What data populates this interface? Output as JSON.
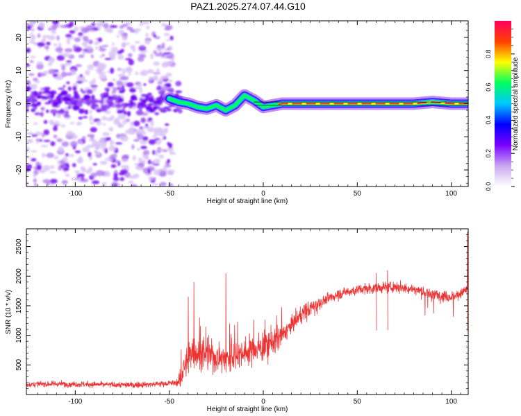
{
  "title": "PAZ1.2025.274.07.44.G10",
  "chart_data": [
    {
      "type": "heatmap",
      "title": "PAZ1.2025.274.07.44.G10",
      "xlabel": "Height of straight line (km)",
      "ylabel": "Frequency (Hz)",
      "xlim": [
        -126,
        109
      ],
      "ylim": [
        -25,
        25
      ],
      "xticks": [
        -100,
        -50,
        0,
        50,
        100
      ],
      "xtick_labels": [
        "-100",
        "-50",
        "0",
        "50",
        "100"
      ],
      "yticks": [
        -20,
        -10,
        0,
        10,
        20
      ],
      "ytick_labels": [
        "-20",
        "-10",
        "0",
        "10",
        "20"
      ],
      "colorbar": {
        "label": "Normalized spectral amplitude",
        "ticks": [
          0.0,
          0.2,
          0.4,
          0.6,
          0.8
        ],
        "tick_labels": [
          "0.0",
          "0.2",
          "0.4",
          "0.6",
          "0.8"
        ],
        "range": [
          0,
          1
        ],
        "colormap": [
          "#ffffff",
          "#c9a8f0",
          "#7a00ff",
          "#0000ff",
          "#00c8ff",
          "#00ff60",
          "#ffff00",
          "#ff4000",
          "#ff0060"
        ]
      },
      "ridge": {
        "description_x_km": [
          -50,
          -45,
          -40,
          -35,
          -30,
          -25,
          -20,
          -15,
          -10,
          -5,
          0,
          5,
          10,
          20,
          40,
          60,
          80,
          90,
          100,
          109
        ],
        "frequency_hz": [
          1.5,
          0.5,
          0.0,
          -1.0,
          -1.5,
          -0.5,
          -2.0,
          -0.5,
          2.5,
          1.0,
          -1.0,
          -0.5,
          0.0,
          0.0,
          0.0,
          0.0,
          0.0,
          0.5,
          0.0,
          0.0
        ]
      },
      "noise_region_x_km": [
        -126,
        -50
      ],
      "horizontal_line_hz": 0.5
    },
    {
      "type": "line",
      "xlabel": "Height of straight line (km)",
      "ylabel": "SNR (10 * v/v)",
      "xlim": [
        -126,
        109
      ],
      "ylim": [
        0,
        2800
      ],
      "xticks": [
        -100,
        -50,
        0,
        50,
        100
      ],
      "xtick_labels": [
        "-100",
        "-50",
        "0",
        "50",
        "100"
      ],
      "yticks": [
        500,
        1000,
        1500,
        2000,
        2500
      ],
      "ytick_labels": [
        "500",
        "1000",
        "1500",
        "2000",
        "2500"
      ],
      "color": "#ee3333",
      "trend_x_km": [
        -126,
        -110,
        -90,
        -70,
        -55,
        -45,
        -42,
        -38,
        -30,
        -20,
        -10,
        0,
        10,
        20,
        30,
        40,
        50,
        60,
        70,
        80,
        90,
        100,
        105,
        109
      ],
      "trend_snr": [
        170,
        180,
        170,
        160,
        180,
        200,
        450,
        750,
        650,
        620,
        720,
        800,
        1000,
        1350,
        1550,
        1700,
        1770,
        1800,
        1820,
        1780,
        1700,
        1650,
        1700,
        1800
      ],
      "spikes": [
        {
          "x": -40,
          "y": 1650
        },
        {
          "x": -37,
          "y": 1900
        },
        {
          "x": -20,
          "y": 2050
        },
        {
          "x": -34,
          "y": 1300
        },
        {
          "x": -18,
          "y": 1200
        },
        {
          "x": 60,
          "y": 2050
        },
        {
          "x": 66,
          "y": 2100
        },
        {
          "x": 108.5,
          "y": 2750
        }
      ]
    }
  ]
}
